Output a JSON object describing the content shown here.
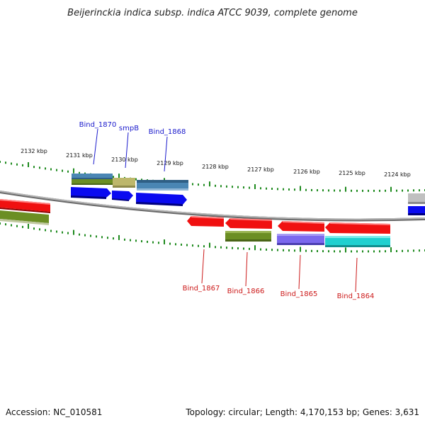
{
  "title": "Beijerinckia indica subsp. indica ATCC 9039, complete genome",
  "accession_text": "Accession: NC_010581",
  "topology_text": "Topology: circular; Length: 4,170,153 bp; Genes: 3,631",
  "colors": {
    "backbone": "#9a9a9a",
    "tick": "#1e8a1e",
    "forward_label": "#1a1acc",
    "reverse_label": "#cc1a1a",
    "cds_blue": "#0a0af0",
    "cds_red": "#f01010",
    "feature_steelblue": "#4a86b4",
    "feature_olive": "#6b8e23",
    "feature_khaki": "#bdb76b",
    "feature_slateblue": "#7b68ee",
    "feature_turquoise": "#20d0d0",
    "feature_grey": "#c0c0c0"
  },
  "ruler": {
    "unit": "kbp",
    "ticks": [
      "2132 kbp",
      "2131 kbp",
      "2130 kbp",
      "2129 kbp",
      "2128 kbp",
      "2127 kbp",
      "2126 kbp",
      "2125 kbp",
      "2124 kbp"
    ]
  },
  "gene_labels": {
    "forward": [
      "Bind_1870",
      "smpB",
      "Bind_1868"
    ],
    "reverse": [
      "Bind_1867",
      "Bind_1866",
      "Bind_1865",
      "Bind_1864"
    ]
  }
}
